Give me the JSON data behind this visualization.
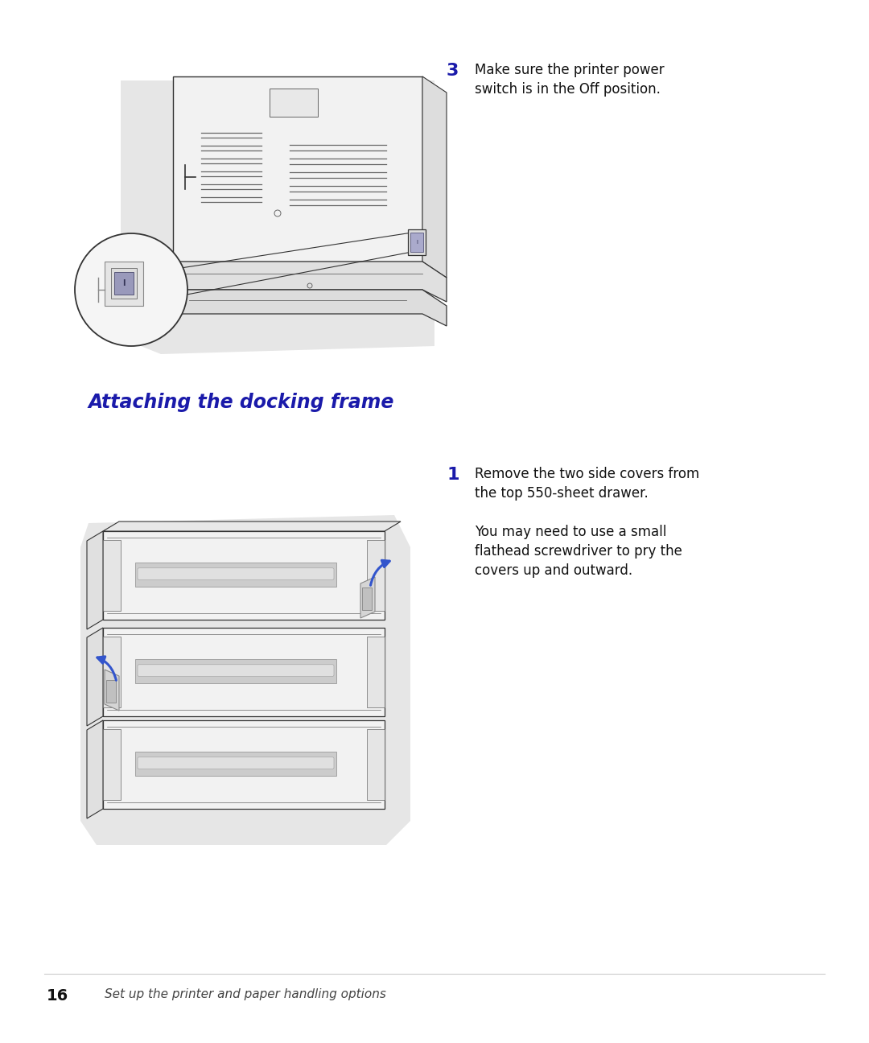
{
  "bg_color": "#ffffff",
  "page_width": 10.8,
  "page_height": 12.96,
  "step3_number": "3",
  "step3_text_line1": "Make sure the printer power",
  "step3_text_line2": "switch is in the Off position.",
  "section_title": "Attaching the docking frame",
  "step1_number": "1",
  "step1_text_line1": "Remove the two side covers from",
  "step1_text_line2": "the top 550-sheet drawer.",
  "step1_para2_line1": "You may need to use a small",
  "step1_para2_line2": "flathead screwdriver to pry the",
  "step1_para2_line3": "covers up and outward.",
  "footer_number": "16",
  "footer_text": "Set up the printer and paper handling options",
  "title_color": "#1a1aaa",
  "step_number_color": "#1a1aaa",
  "text_color": "#111111",
  "footer_color": "#444444",
  "illus_bg": "#e6e6e6",
  "illus_body": "#f2f2f2",
  "illus_line": "#666666",
  "illus_dark_line": "#333333",
  "illus_blue": "#3355cc"
}
